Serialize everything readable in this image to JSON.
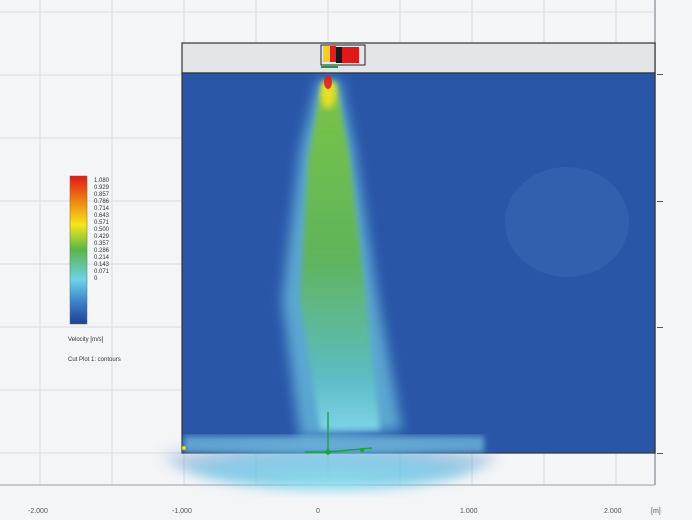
{
  "legend": {
    "values": [
      "1.080",
      "0.929",
      "0.857",
      "0.786",
      "0.714",
      "0.643",
      "0.571",
      "0.500",
      "0.429",
      "0.357",
      "0.286",
      "0.214",
      "0.143",
      "0.071",
      "0"
    ],
    "quantity": "Velocity [m/s]",
    "plot_name": "Cut Plot 1: contours"
  },
  "axis": {
    "ticks": [
      "-2.000",
      "-1.000",
      "0",
      "1.000",
      "2.000"
    ],
    "unit": "[m]"
  },
  "colors": {
    "background": "#f4f5f7",
    "domain_fill": "#2a56a8",
    "jet_core": "#5fb84a",
    "jet_edge": "#7ed3e8",
    "nozzle_red": "#e02020",
    "vector_green": "#18a63a"
  }
}
